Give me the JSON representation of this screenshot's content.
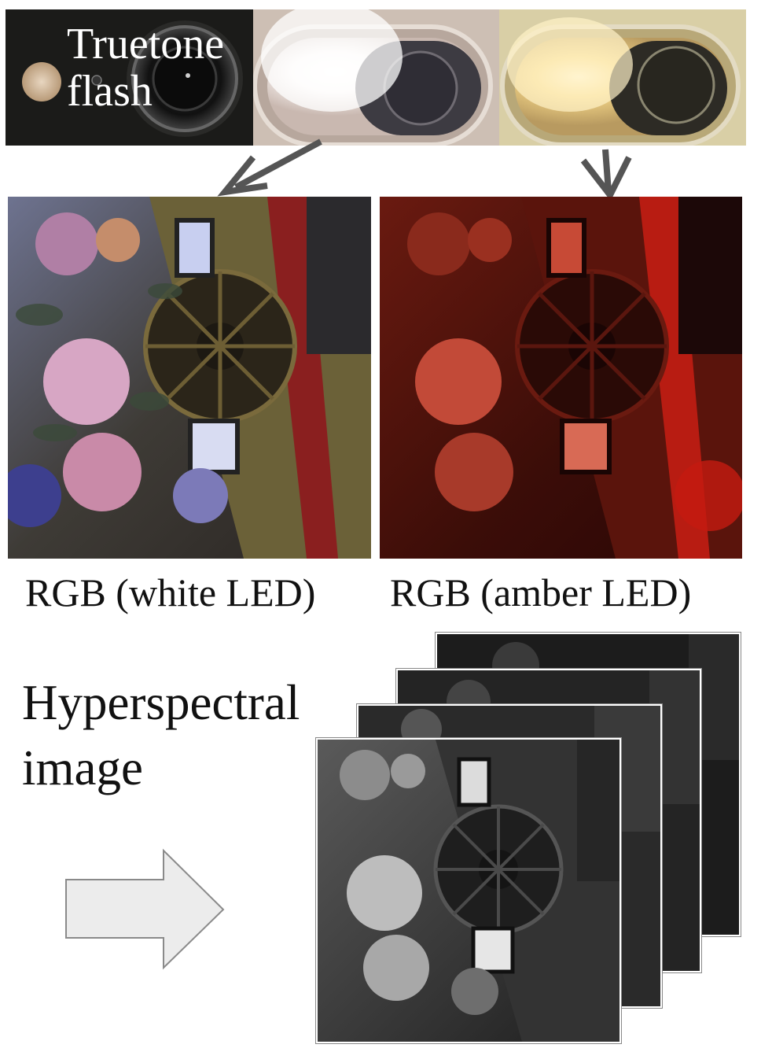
{
  "header": {
    "label_line1": "Truetone",
    "label_line2": "flash"
  },
  "captions": {
    "white": "RGB (white LED)",
    "amber": "RGB (amber LED)"
  },
  "hyperspectral": {
    "line1": "Hyperspectral",
    "line2": "image"
  },
  "colors": {
    "white_led_tint": "#b9c7e0",
    "amber_led_tint": "#c8321c",
    "gray_frame": "#e8e8e8"
  }
}
